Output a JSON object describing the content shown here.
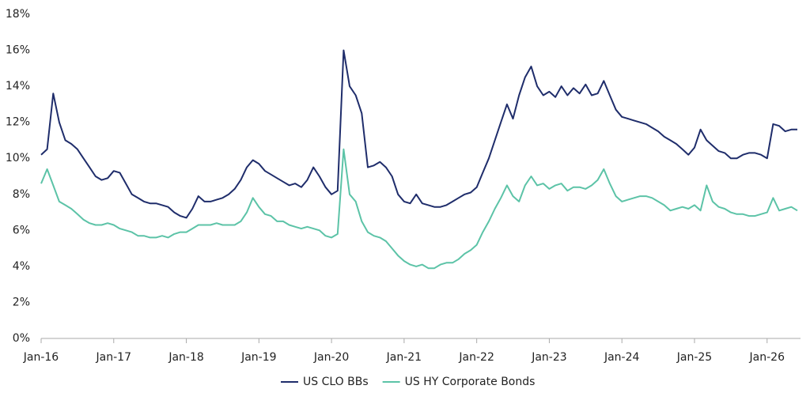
{
  "chart_data": {
    "type": "line",
    "x": [
      0,
      1,
      2,
      3,
      4,
      5,
      6,
      7,
      8,
      9,
      10,
      11,
      12,
      13,
      14,
      15,
      16,
      17,
      18,
      19,
      20,
      21,
      22,
      23,
      24,
      25,
      26,
      27,
      28,
      29,
      30,
      31,
      32,
      33,
      34,
      35,
      36,
      37,
      38,
      39,
      40,
      41,
      42,
      43,
      44,
      45,
      46,
      47,
      48,
      49,
      50,
      51,
      52,
      53,
      54,
      55,
      56,
      57,
      58,
      59,
      60,
      61,
      62,
      63,
      64,
      65,
      66,
      67,
      68,
      69,
      70,
      71,
      72,
      73,
      74,
      75,
      76,
      77,
      78,
      79,
      80,
      81,
      82,
      83,
      84,
      85,
      86,
      87,
      88,
      89,
      90,
      91,
      92,
      93,
      94,
      95,
      96,
      97,
      98,
      99,
      100,
      101,
      102,
      103,
      104,
      105,
      106,
      107,
      108,
      109,
      110,
      111,
      112,
      113,
      114,
      115,
      116,
      117,
      118,
      119,
      120,
      121,
      122,
      123,
      124,
      125
    ],
    "series": [
      {
        "name": "US CLO BBs",
        "color": "#1f2d6b",
        "values": [
          10.2,
          10.5,
          13.6,
          12.0,
          11.0,
          10.8,
          10.5,
          10.0,
          9.5,
          9.0,
          8.8,
          8.9,
          9.3,
          9.2,
          8.6,
          8.0,
          7.8,
          7.6,
          7.5,
          7.5,
          7.4,
          7.3,
          7.0,
          6.8,
          6.7,
          7.2,
          7.9,
          7.6,
          7.6,
          7.7,
          7.8,
          8.0,
          8.3,
          8.8,
          9.5,
          9.9,
          9.7,
          9.3,
          9.1,
          8.9,
          8.7,
          8.5,
          8.6,
          8.4,
          8.8,
          9.5,
          9.0,
          8.4,
          8.0,
          8.2,
          16.0,
          14.0,
          13.5,
          12.5,
          9.5,
          9.6,
          9.8,
          9.5,
          9.0,
          8.0,
          7.6,
          7.5,
          8.0,
          7.5,
          7.4,
          7.3,
          7.3,
          7.4,
          7.6,
          7.8,
          8.0,
          8.1,
          8.4,
          9.2,
          10.0,
          11.0,
          12.0,
          13.0,
          12.2,
          13.5,
          14.5,
          15.1,
          14.0,
          13.5,
          13.7,
          13.4,
          14.0,
          13.5,
          13.9,
          13.6,
          14.1,
          13.5,
          13.6,
          14.3,
          13.5,
          12.7,
          12.3,
          12.2,
          12.1,
          12.0,
          11.9,
          11.7,
          11.5,
          11.2,
          11.0,
          10.8,
          10.5,
          10.2,
          10.6,
          11.6,
          11.0,
          10.7,
          10.4,
          10.3,
          10.0,
          10.0,
          10.2,
          10.3,
          10.3,
          10.2,
          10.0,
          11.9,
          11.8,
          11.5,
          11.6,
          11.6
        ]
      },
      {
        "name": "US HY Corporate Bonds",
        "color": "#5cc3a7",
        "values": [
          8.6,
          9.4,
          8.5,
          7.6,
          7.4,
          7.2,
          6.9,
          6.6,
          6.4,
          6.3,
          6.3,
          6.4,
          6.3,
          6.1,
          6.0,
          5.9,
          5.7,
          5.7,
          5.6,
          5.6,
          5.7,
          5.6,
          5.8,
          5.9,
          5.9,
          6.1,
          6.3,
          6.3,
          6.3,
          6.4,
          6.3,
          6.3,
          6.3,
          6.5,
          7.0,
          7.8,
          7.3,
          6.9,
          6.8,
          6.5,
          6.5,
          6.3,
          6.2,
          6.1,
          6.2,
          6.1,
          6.0,
          5.7,
          5.6,
          5.8,
          10.5,
          8.0,
          7.6,
          6.5,
          5.9,
          5.7,
          5.6,
          5.4,
          5.0,
          4.6,
          4.3,
          4.1,
          4.0,
          4.1,
          3.9,
          3.9,
          4.1,
          4.2,
          4.2,
          4.4,
          4.7,
          4.9,
          5.2,
          5.9,
          6.5,
          7.2,
          7.8,
          8.5,
          7.9,
          7.6,
          8.5,
          9.0,
          8.5,
          8.6,
          8.3,
          8.5,
          8.6,
          8.2,
          8.4,
          8.4,
          8.3,
          8.5,
          8.8,
          9.4,
          8.6,
          7.9,
          7.6,
          7.7,
          7.8,
          7.9,
          7.9,
          7.8,
          7.6,
          7.4,
          7.1,
          7.2,
          7.3,
          7.2,
          7.4,
          7.1,
          8.5,
          7.6,
          7.3,
          7.2,
          7.0,
          6.9,
          6.9,
          6.8,
          6.8,
          6.9,
          7.0,
          7.8,
          7.1,
          7.2,
          7.3,
          7.1
        ]
      }
    ],
    "xlim": [
      0,
      125
    ],
    "xticks": [
      {
        "value": 0,
        "label": "Jan-16"
      },
      {
        "value": 12,
        "label": "Jan-17"
      },
      {
        "value": 24,
        "label": "Jan-18"
      },
      {
        "value": 36,
        "label": "Jan-19"
      },
      {
        "value": 48,
        "label": "Jan-20"
      },
      {
        "value": 60,
        "label": "Jan-21"
      },
      {
        "value": 72,
        "label": "Jan-22"
      },
      {
        "value": 84,
        "label": "Jan-23"
      },
      {
        "value": 96,
        "label": "Jan-24"
      },
      {
        "value": 108,
        "label": "Jan-25"
      },
      {
        "value": 120,
        "label": "Jan-26"
      }
    ],
    "ylim": [
      0,
      18
    ],
    "yticks": [
      {
        "value": 0,
        "label": "0%"
      },
      {
        "value": 2,
        "label": "2%"
      },
      {
        "value": 4,
        "label": "4%"
      },
      {
        "value": 6,
        "label": "6%"
      },
      {
        "value": 8,
        "label": "8%"
      },
      {
        "value": 10,
        "label": "10%"
      },
      {
        "value": 12,
        "label": "12%"
      },
      {
        "value": 14,
        "label": "14%"
      },
      {
        "value": 16,
        "label": "16%"
      },
      {
        "value": 18,
        "label": "18%"
      }
    ],
    "legend": "bottom"
  }
}
